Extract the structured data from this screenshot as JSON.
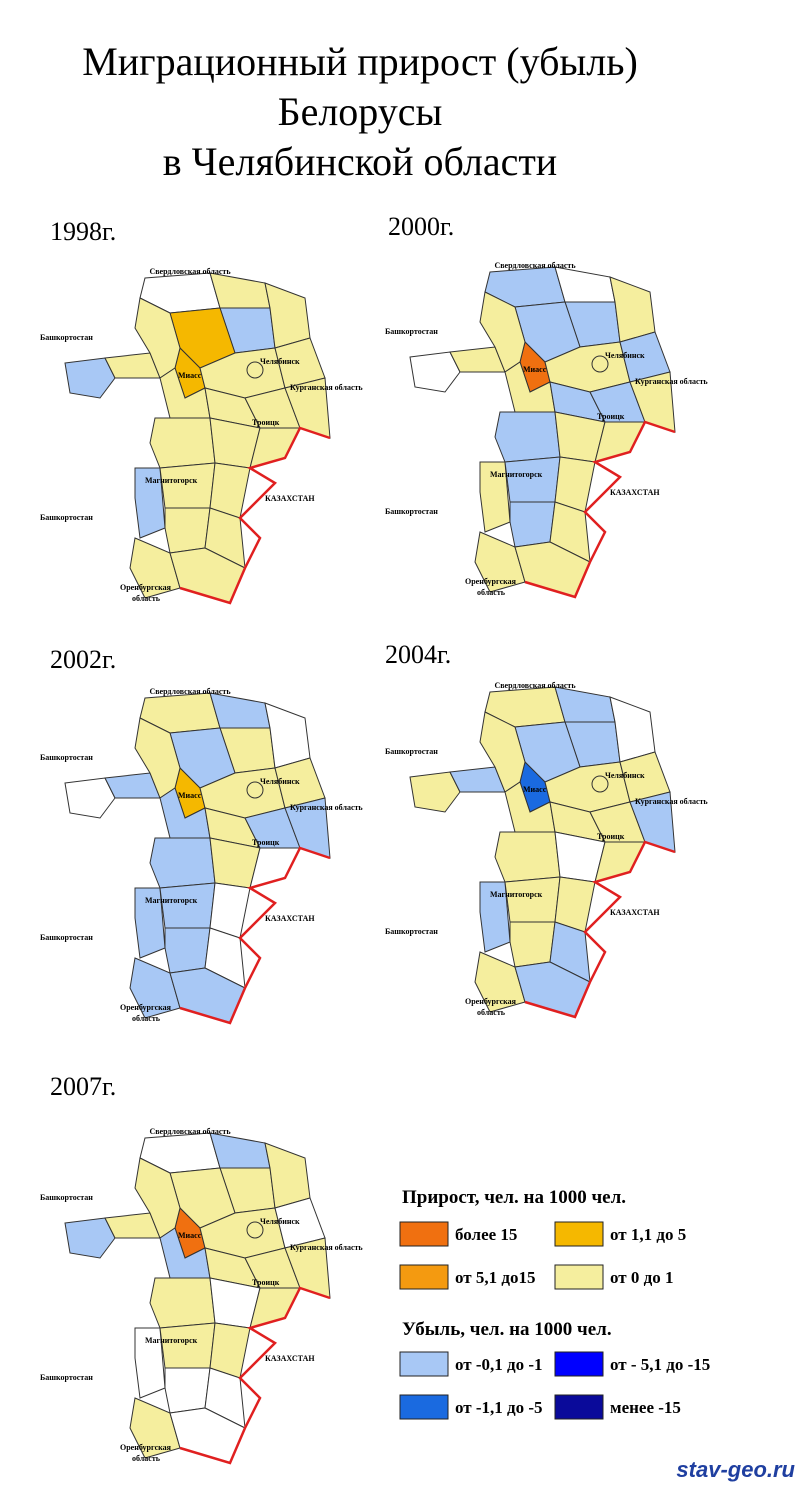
{
  "title": [
    "Миграционный прирост (убыль)",
    "Белорусы",
    "в Челябинской области"
  ],
  "map_labels": [
    "Свердловская область",
    "Башкортостан",
    "Челябинск",
    "Курганская область",
    "Троицк",
    "КАЗАХСТАН",
    "Башкортостан",
    "Оренбургская",
    "область",
    "Магнитогорск",
    "Миасс"
  ],
  "maps": [
    {
      "year": "1998г.",
      "district_colors": [
        "#ffffff",
        "#f5ee9e",
        "#a8c8f5",
        "#f5ee9e",
        "#f5b800",
        "#f5b800",
        "#a8c8f5",
        "#f5ee9e",
        "#f5ee9e",
        "#f5ee9e",
        "#f5ee9e",
        "#f5ee9e",
        "#f5ee9e",
        "#f5ee9e",
        "#f5ee9e",
        "#f5ee9e",
        "#f5ee9e",
        "#f5ee9e",
        "#a8c8f5",
        "#f5ee9e",
        "#f5ee9e",
        "#f5ee9e",
        "#f5ee9e",
        "#f5ee9e",
        "#f5ee9e"
      ]
    },
    {
      "year": "2000г.",
      "district_colors": [
        "#a8c8f5",
        "#ffffff",
        "#a8c8f5",
        "#f5ee9e",
        "#a8c8f5",
        "#f07010",
        "#ffffff",
        "#f5ee9e",
        "#f5ee9e",
        "#f5ee9e",
        "#a8c8f5",
        "#f5ee9e",
        "#a8c8f5",
        "#a8c8f5",
        "#f5ee9e",
        "#a8c8f5",
        "#f5ee9e",
        "#f5ee9e",
        "#f5ee9e",
        "#a8c8f5",
        "#f5ee9e",
        "#a8c8f5",
        "#f5ee9e",
        "#f5ee9e",
        "#f5ee9e"
      ]
    },
    {
      "year": "2002г.",
      "district_colors": [
        "#f5ee9e",
        "#a8c8f5",
        "#f5ee9e",
        "#ffffff",
        "#a8c8f5",
        "#f5b800",
        "#ffffff",
        "#a8c8f5",
        "#f5ee9e",
        "#f5ee9e",
        "#f5ee9e",
        "#a8c8f5",
        "#f5ee9e",
        "#a8c8f5",
        "#a8c8f5",
        "#a8c8f5",
        "#f5ee9e",
        "#ffffff",
        "#a8c8f5",
        "#a8c8f5",
        "#ffffff",
        "#a8c8f5",
        "#ffffff",
        "#a8c8f5",
        "#a8c8f5"
      ]
    },
    {
      "year": "2004г.",
      "district_colors": [
        "#f5ee9e",
        "#a8c8f5",
        "#a8c8f5",
        "#ffffff",
        "#a8c8f5",
        "#1a6ae0",
        "#f5ee9e",
        "#a8c8f5",
        "#f5ee9e",
        "#f5ee9e",
        "#f5ee9e",
        "#f5ee9e",
        "#f5ee9e",
        "#f5ee9e",
        "#a8c8f5",
        "#f5ee9e",
        "#ffffff",
        "#f5ee9e",
        "#a8c8f5",
        "#f5ee9e",
        "#f5ee9e",
        "#f5ee9e",
        "#a8c8f5",
        "#f5ee9e",
        "#a8c8f5"
      ]
    },
    {
      "year": "2007г.",
      "district_colors": [
        "#ffffff",
        "#a8c8f5",
        "#f5ee9e",
        "#f5ee9e",
        "#f5ee9e",
        "#f07010",
        "#a8c8f5",
        "#f5ee9e",
        "#f5ee9e",
        "#f5ee9e",
        "#ffffff",
        "#a8c8f5",
        "#f5ee9e",
        "#f5ee9e",
        "#f5ee9e",
        "#f5ee9e",
        "#ffffff",
        "#f5ee9e",
        "#ffffff",
        "#f5ee9e",
        "#f5ee9e",
        "#ffffff",
        "#ffffff",
        "#f5ee9e",
        "#ffffff"
      ]
    }
  ],
  "legend": {
    "gain_title": "Прирост, чел. на 1000 чел.",
    "gain": [
      {
        "label": "более 15",
        "color": "#f07010"
      },
      {
        "label": "от 1,1 до 5",
        "color": "#f5b800"
      },
      {
        "label": "от 5,1 до15",
        "color": "#f49a10"
      },
      {
        "label": "от 0 до 1",
        "color": "#f5ee9e"
      }
    ],
    "loss_title": "Убыль, чел. на 1000 чел.",
    "loss": [
      {
        "label": "от -0,1 до -1",
        "color": "#a8c8f5"
      },
      {
        "label": "от - 5,1 до -15",
        "color": "#0000ff"
      },
      {
        "label": "от -1,1 до -5",
        "color": "#1a6ae0"
      },
      {
        "label": "менее -15",
        "color": "#0a0a9a"
      }
    ]
  },
  "footer": "stav-geo.ru"
}
